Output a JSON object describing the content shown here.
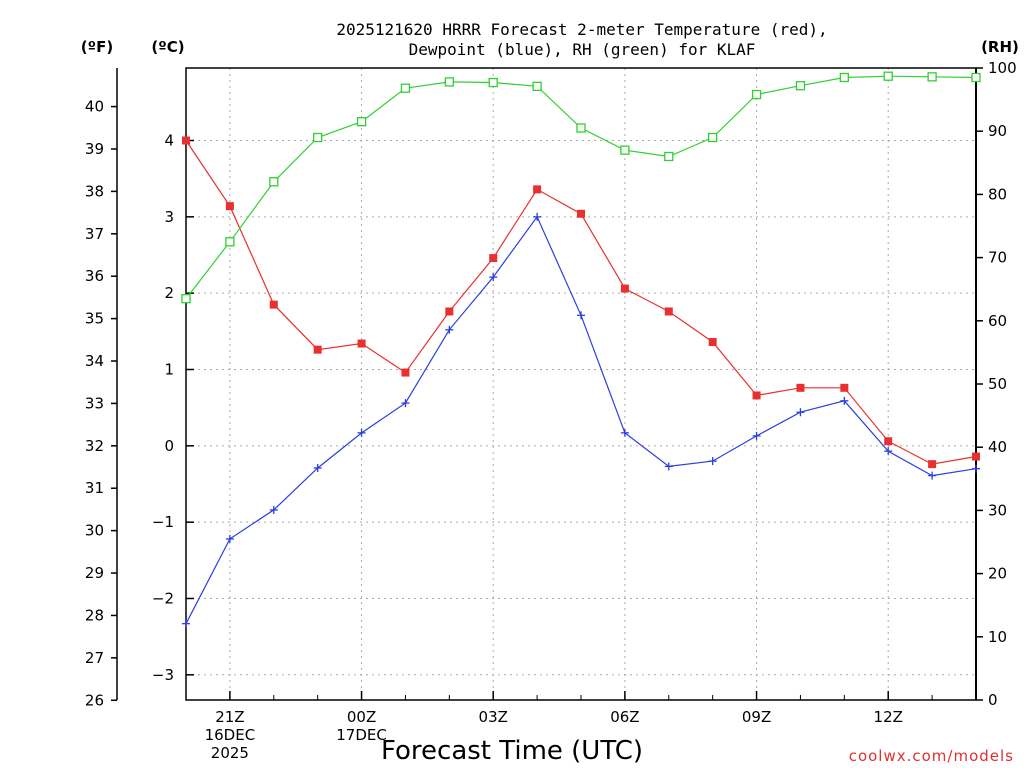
{
  "chart_data": {
    "type": "line",
    "title": [
      "2025121620 HRRR Forecast 2-meter Temperature (red),",
      "Dewpoint (blue), RH (green) for KLAF"
    ],
    "xlabel": "Forecast Time (UTC)",
    "credit": "coolwx.com/models",
    "units": {
      "left_outer": "(ºF)",
      "left_inner": "(ºC)",
      "right": "(RH)"
    },
    "x_hours": [
      20,
      21,
      22,
      23,
      24,
      25,
      26,
      27,
      28,
      29,
      30,
      31,
      32,
      33,
      34,
      35,
      36,
      37,
      38
    ],
    "x_ticks": [
      {
        "hour": 21,
        "lines": [
          "21Z",
          "16DEC",
          "2025"
        ]
      },
      {
        "hour": 24,
        "lines": [
          "00Z",
          "17DEC"
        ]
      },
      {
        "hour": 27,
        "lines": [
          "03Z"
        ]
      },
      {
        "hour": 30,
        "lines": [
          "06Z"
        ]
      },
      {
        "hour": 33,
        "lines": [
          "09Z"
        ]
      },
      {
        "hour": 36,
        "lines": [
          "12Z"
        ]
      }
    ],
    "x_range": [
      20,
      38
    ],
    "celsius_ticks": [
      "4",
      "3",
      "2",
      "1",
      "0",
      "−1",
      "−2",
      "−3"
    ],
    "celsius_tick_values": [
      4,
      3,
      2,
      1,
      0,
      -1,
      -2,
      -3
    ],
    "fahrenheit_ticks": [
      "40",
      "39",
      "38",
      "37",
      "36",
      "35",
      "34",
      "33",
      "32",
      "31",
      "30",
      "29",
      "28",
      "27",
      "26"
    ],
    "fahrenheit_tick_values": [
      40,
      39,
      38,
      37,
      36,
      35,
      34,
      33,
      32,
      31,
      30,
      29,
      28,
      27,
      26
    ],
    "rh_ticks": [
      "100",
      "90",
      "80",
      "70",
      "60",
      "50",
      "40",
      "30",
      "20",
      "10",
      "0"
    ],
    "rh_tick_values": [
      100,
      90,
      80,
      70,
      60,
      50,
      40,
      30,
      20,
      10,
      0
    ],
    "celsius_range": [
      -3.33,
      4.95
    ],
    "rh_range": [
      0,
      100
    ],
    "series": [
      {
        "name": "Temperature",
        "axis": "celsius",
        "color": "#e83030",
        "marker": "filled-square",
        "values": [
          4.0,
          3.14,
          1.85,
          1.26,
          1.34,
          0.96,
          1.76,
          2.46,
          3.36,
          3.04,
          2.06,
          1.76,
          1.36,
          0.66,
          0.76,
          0.76,
          0.06,
          -0.24,
          -0.14
        ]
      },
      {
        "name": "Dewpoint",
        "axis": "celsius",
        "color": "#2a3ee0",
        "marker": "plus",
        "values": [
          -2.33,
          -1.22,
          -0.84,
          -0.29,
          0.17,
          0.56,
          1.52,
          2.21,
          3.0,
          1.71,
          0.17,
          -0.27,
          -0.2,
          0.13,
          0.44,
          0.59,
          -0.07,
          -0.39,
          -0.3
        ]
      },
      {
        "name": "RH",
        "axis": "rh",
        "color": "#30d030",
        "marker": "open-square",
        "values": [
          63.5,
          72.5,
          82.0,
          89.0,
          91.5,
          96.8,
          97.8,
          97.7,
          97.1,
          90.5,
          87.0,
          86.0,
          89.0,
          95.8,
          97.2,
          98.5,
          98.7,
          98.6,
          98.5
        ]
      }
    ]
  }
}
